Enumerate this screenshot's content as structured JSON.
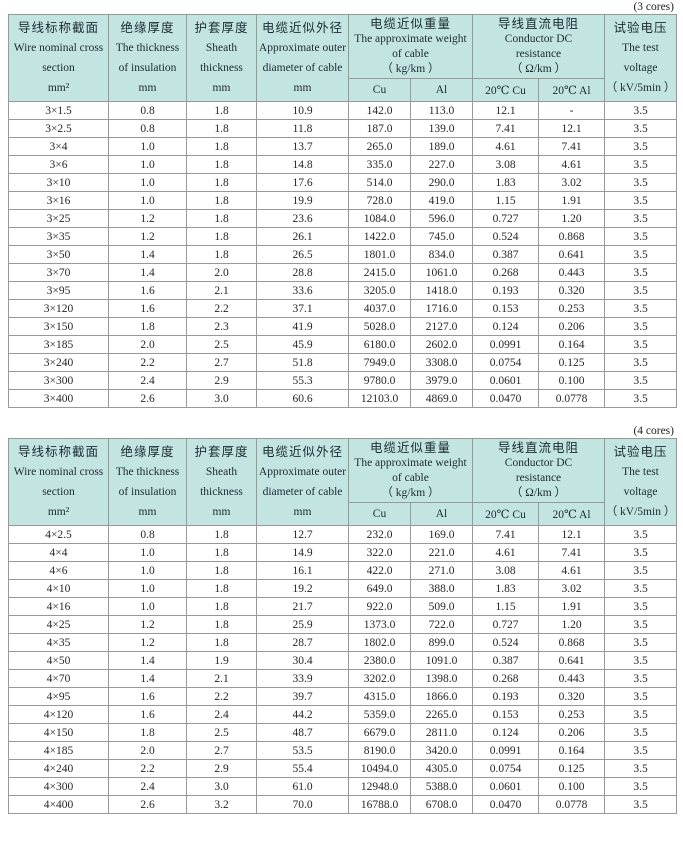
{
  "colors": {
    "header_bg": "#c3e5e1",
    "border": "#989898",
    "header_text": "#1c2a33",
    "cell_text": "#262626"
  },
  "header": {
    "columns": [
      {
        "zh": "导线标称截面",
        "en_lines": [
          "Wire nominal cross",
          "section"
        ],
        "unit": "mm²"
      },
      {
        "zh": "绝缘厚度",
        "en_lines": [
          "The thickness",
          "of insulation"
        ],
        "unit": "mm"
      },
      {
        "zh": "护套厚度",
        "en_lines": [
          "Sheath",
          "thickness"
        ],
        "unit": "mm"
      },
      {
        "zh": "电缆近似外径",
        "en_lines": [
          "Approximate outer",
          "diameter of cable"
        ],
        "unit": "mm"
      }
    ],
    "weight_group": {
      "zh": "电缆近似重量",
      "en_lines": [
        "The approximate weight",
        "of cable"
      ],
      "unit": "（ kg/km ）",
      "sub": [
        "Cu",
        "Al"
      ]
    },
    "resistance_group": {
      "zh": "导线直流电阻",
      "en_lines": [
        "Conductor DC",
        "resistance"
      ],
      "unit": "（ Ω/km ）",
      "sub": [
        "20℃ Cu",
        "20℃ Al"
      ]
    },
    "voltage": {
      "zh": "试验电压",
      "en_lines": [
        "The test",
        "voltage"
      ],
      "unit": "（ kV/5min ）"
    }
  },
  "tables": [
    {
      "caption": "(3 cores)",
      "rows": [
        [
          "3×1.5",
          "0.8",
          "1.8",
          "10.9",
          "142.0",
          "113.0",
          "12.1",
          "-",
          "3.5"
        ],
        [
          "3×2.5",
          "0.8",
          "1.8",
          "11.8",
          "187.0",
          "139.0",
          "7.41",
          "12.1",
          "3.5"
        ],
        [
          "3×4",
          "1.0",
          "1.8",
          "13.7",
          "265.0",
          "189.0",
          "4.61",
          "7.41",
          "3.5"
        ],
        [
          "3×6",
          "1.0",
          "1.8",
          "14.8",
          "335.0",
          "227.0",
          "3.08",
          "4.61",
          "3.5"
        ],
        [
          "3×10",
          "1.0",
          "1.8",
          "17.6",
          "514.0",
          "290.0",
          "1.83",
          "3.02",
          "3.5"
        ],
        [
          "3×16",
          "1.0",
          "1.8",
          "19.9",
          "728.0",
          "419.0",
          "1.15",
          "1.91",
          "3.5"
        ],
        [
          "3×25",
          "1.2",
          "1.8",
          "23.6",
          "1084.0",
          "596.0",
          "0.727",
          "1.20",
          "3.5"
        ],
        [
          "3×35",
          "1.2",
          "1.8",
          "26.1",
          "1422.0",
          "745.0",
          "0.524",
          "0.868",
          "3.5"
        ],
        [
          "3×50",
          "1.4",
          "1.8",
          "26.5",
          "1801.0",
          "834.0",
          "0.387",
          "0.641",
          "3.5"
        ],
        [
          "3×70",
          "1.4",
          "2.0",
          "28.8",
          "2415.0",
          "1061.0",
          "0.268",
          "0.443",
          "3.5"
        ],
        [
          "3×95",
          "1.6",
          "2.1",
          "33.6",
          "3205.0",
          "1418.0",
          "0.193",
          "0.320",
          "3.5"
        ],
        [
          "3×120",
          "1.6",
          "2.2",
          "37.1",
          "4037.0",
          "1716.0",
          "0.153",
          "0.253",
          "3.5"
        ],
        [
          "3×150",
          "1.8",
          "2.3",
          "41.9",
          "5028.0",
          "2127.0",
          "0.124",
          "0.206",
          "3.5"
        ],
        [
          "3×185",
          "2.0",
          "2.5",
          "45.9",
          "6180.0",
          "2602.0",
          "0.0991",
          "0.164",
          "3.5"
        ],
        [
          "3×240",
          "2.2",
          "2.7",
          "51.8",
          "7949.0",
          "3308.0",
          "0.0754",
          "0.125",
          "3.5"
        ],
        [
          "3×300",
          "2.4",
          "2.9",
          "55.3",
          "9780.0",
          "3979.0",
          "0.0601",
          "0.100",
          "3.5"
        ],
        [
          "3×400",
          "2.6",
          "3.0",
          "60.6",
          "12103.0",
          "4869.0",
          "0.0470",
          "0.0778",
          "3.5"
        ]
      ]
    },
    {
      "caption": "(4 cores)",
      "rows": [
        [
          "4×2.5",
          "0.8",
          "1.8",
          "12.7",
          "232.0",
          "169.0",
          "7.41",
          "12.1",
          "3.5"
        ],
        [
          "4×4",
          "1.0",
          "1.8",
          "14.9",
          "322.0",
          "221.0",
          "4.61",
          "7.41",
          "3.5"
        ],
        [
          "4×6",
          "1.0",
          "1.8",
          "16.1",
          "422.0",
          "271.0",
          "3.08",
          "4.61",
          "3.5"
        ],
        [
          "4×10",
          "1.0",
          "1.8",
          "19.2",
          "649.0",
          "388.0",
          "1.83",
          "3.02",
          "3.5"
        ],
        [
          "4×16",
          "1.0",
          "1.8",
          "21.7",
          "922.0",
          "509.0",
          "1.15",
          "1.91",
          "3.5"
        ],
        [
          "4×25",
          "1.2",
          "1.8",
          "25.9",
          "1373.0",
          "722.0",
          "0.727",
          "1.20",
          "3.5"
        ],
        [
          "4×35",
          "1.2",
          "1.8",
          "28.7",
          "1802.0",
          "899.0",
          "0.524",
          "0.868",
          "3.5"
        ],
        [
          "4×50",
          "1.4",
          "1.9",
          "30.4",
          "2380.0",
          "1091.0",
          "0.387",
          "0.641",
          "3.5"
        ],
        [
          "4×70",
          "1.4",
          "2.1",
          "33.9",
          "3202.0",
          "1398.0",
          "0.268",
          "0.443",
          "3.5"
        ],
        [
          "4×95",
          "1.6",
          "2.2",
          "39.7",
          "4315.0",
          "1866.0",
          "0.193",
          "0.320",
          "3.5"
        ],
        [
          "4×120",
          "1.6",
          "2.4",
          "44.2",
          "5359.0",
          "2265.0",
          "0.153",
          "0.253",
          "3.5"
        ],
        [
          "4×150",
          "1.8",
          "2.5",
          "48.7",
          "6679.0",
          "2811.0",
          "0.124",
          "0.206",
          "3.5"
        ],
        [
          "4×185",
          "2.0",
          "2.7",
          "53.5",
          "8190.0",
          "3420.0",
          "0.0991",
          "0.164",
          "3.5"
        ],
        [
          "4×240",
          "2.2",
          "2.9",
          "55.4",
          "10494.0",
          "4305.0",
          "0.0754",
          "0.125",
          "3.5"
        ],
        [
          "4×300",
          "2.4",
          "3.0",
          "61.0",
          "12948.0",
          "5388.0",
          "0.0601",
          "0.100",
          "3.5"
        ],
        [
          "4×400",
          "2.6",
          "3.2",
          "70.0",
          "16788.0",
          "6708.0",
          "0.0470",
          "0.0778",
          "3.5"
        ]
      ]
    }
  ]
}
